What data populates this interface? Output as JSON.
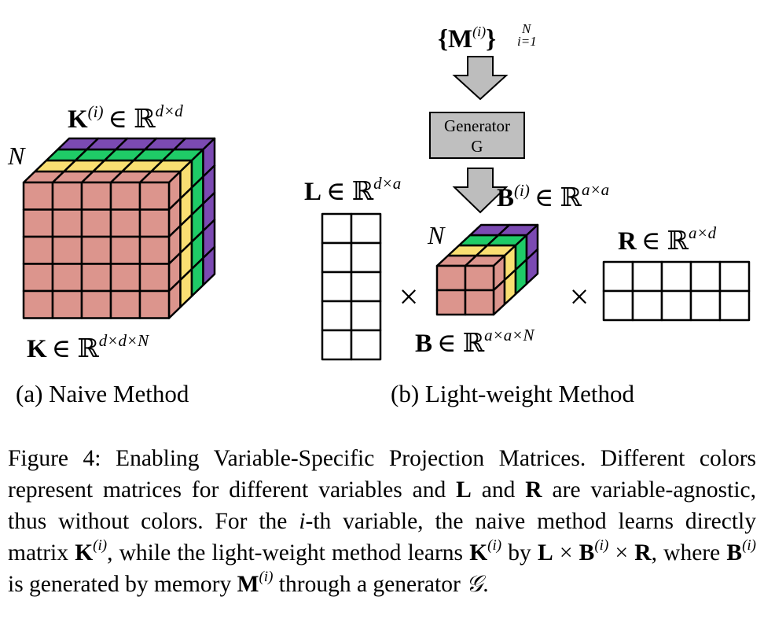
{
  "panel_a": {
    "tensor_label": {
      "sym": "K",
      "sup": "(i)",
      "set": "∈ ℝ",
      "dims": "d×d"
    },
    "depth_label": "N",
    "bottom_label": {
      "sym": "K",
      "set": "∈ ℝ",
      "dims": "d×d×N"
    },
    "caption": "(a) Naive Method",
    "slice_colors": [
      "#dc958d",
      "#f9df72",
      "#1fcb67",
      "#7b4ab2"
    ]
  },
  "panel_b": {
    "memory_label": {
      "open": "{",
      "sym": "M",
      "sup": "(i)",
      "close": "}",
      "range_top": "N",
      "range_bottom": "i=1"
    },
    "generator": {
      "line1": "Generator",
      "line2": "G"
    },
    "L_label": {
      "sym": "L",
      "set": "∈ ℝ",
      "dims": "d×a"
    },
    "Bi_label": {
      "sym": "B",
      "sup": "(i)",
      "set": "∈ ℝ",
      "dims": "a×a"
    },
    "R_label": {
      "sym": "R",
      "set": "∈ ℝ",
      "dims": "a×d"
    },
    "depth_label": "N",
    "B_label": {
      "sym": "B",
      "set": "∈ ℝ",
      "dims": "a×a×N"
    },
    "times": "×",
    "caption": "(b) Light-weight Method"
  },
  "figure_caption": {
    "prefix": "Figure 4: Enabling Variable-Specific Projection Matrices. Different colors represent matrices for different variables and ",
    "L": "L",
    "and": " and ",
    "R": "R",
    "after_R": " are variable-agnostic, thus without colors. For the ",
    "i": "i",
    "th": "-th variable, the naive method learns directly matrix ",
    "K": "K",
    "sup_i": "(i)",
    "while": ", while the light-weight method learns ",
    "by": " by ",
    "times": " × ",
    "where": ", where ",
    "generated": " is generated by memory ",
    "M": "M",
    "through": " through a generator ",
    "G": "𝒢",
    "end": "."
  }
}
